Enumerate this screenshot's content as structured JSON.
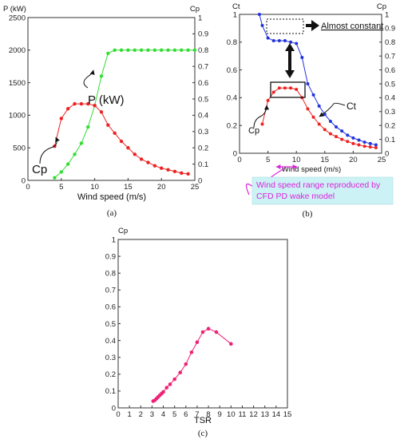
{
  "chart_data": [
    {
      "type": "line",
      "panel_label": "(a)",
      "xlabel": "Wind speed (m/s)",
      "ylabel_left": "P (kW)",
      "ylabel_right": "Cp",
      "xlim": [
        0,
        25
      ],
      "ylim_left": [
        0,
        2500
      ],
      "ylim_right": [
        0,
        1
      ],
      "xticks": [
        "0",
        "5",
        "10",
        "15",
        "20",
        "25"
      ],
      "yticks_left": [
        "0",
        "500",
        "1000",
        "1500",
        "2000",
        "2500"
      ],
      "yticks_right": [
        "0",
        "0.1",
        "0.2",
        "0.3",
        "0.4",
        "0.5",
        "0.6",
        "0.7",
        "0.8",
        "0.9",
        "1"
      ],
      "grid": false,
      "series": [
        {
          "name": "P (kW)",
          "axis": "left",
          "color": "#33dd33",
          "x": [
            4,
            5,
            6,
            7,
            8,
            9,
            10,
            11,
            12,
            13,
            14,
            15,
            16,
            17,
            18,
            19,
            20,
            21,
            22,
            23,
            24,
            25
          ],
          "y": [
            40,
            130,
            250,
            400,
            570,
            820,
            1150,
            1600,
            1950,
            2000,
            2000,
            2000,
            2000,
            2000,
            2000,
            2000,
            2000,
            2000,
            2000,
            2000,
            2000,
            2000
          ]
        },
        {
          "name": "Cp",
          "axis": "right",
          "color": "#ee2222",
          "x": [
            4,
            5,
            6,
            7,
            8,
            9,
            10,
            11,
            12,
            13,
            14,
            15,
            16,
            17,
            18,
            19,
            20,
            21,
            22,
            23,
            24
          ],
          "y": [
            0.21,
            0.38,
            0.44,
            0.47,
            0.47,
            0.47,
            0.46,
            0.42,
            0.34,
            0.29,
            0.24,
            0.2,
            0.16,
            0.13,
            0.11,
            0.09,
            0.075,
            0.065,
            0.055,
            0.045,
            0.04
          ]
        }
      ],
      "annotations": [
        "Cp",
        "P (kW)"
      ]
    },
    {
      "type": "line",
      "panel_label": "(b)",
      "xlabel": "Wind speed (m/s)",
      "ylabel_left": "Ct",
      "ylabel_right": "Cp",
      "xlim": [
        0,
        25
      ],
      "ylim_left": [
        0,
        1
      ],
      "ylim_right": [
        0,
        1
      ],
      "xticks": [
        "0",
        "5",
        "10",
        "15",
        "20",
        "25"
      ],
      "yticks_left": [
        "0",
        "0.2",
        "0.4",
        "0.6",
        "0.8",
        "1"
      ],
      "yticks_right": [
        "0",
        "0.1",
        "0.2",
        "0.3",
        "0.4",
        "0.5",
        "0.6",
        "0.7",
        "0.8",
        "0.9",
        "1"
      ],
      "grid": false,
      "series": [
        {
          "name": "Ct",
          "axis": "left",
          "color": "#2233dd",
          "x": [
            3.5,
            4,
            5,
            6,
            7,
            8,
            9,
            10,
            11,
            12,
            13,
            14,
            15,
            16,
            17,
            18,
            19,
            20,
            21,
            22,
            23,
            24
          ],
          "y": [
            1.0,
            0.92,
            0.83,
            0.81,
            0.81,
            0.81,
            0.8,
            0.79,
            0.69,
            0.5,
            0.42,
            0.34,
            0.28,
            0.23,
            0.19,
            0.16,
            0.13,
            0.11,
            0.095,
            0.08,
            0.07,
            0.06
          ]
        },
        {
          "name": "Cp",
          "axis": "right",
          "color": "#ee2222",
          "x": [
            4,
            5,
            6,
            7,
            8,
            9,
            10,
            11,
            12,
            13,
            14,
            15,
            16,
            17,
            18,
            19,
            20,
            21,
            22,
            23,
            24
          ],
          "y": [
            0.21,
            0.38,
            0.44,
            0.47,
            0.47,
            0.47,
            0.46,
            0.4,
            0.32,
            0.26,
            0.21,
            0.17,
            0.14,
            0.12,
            0.1,
            0.085,
            0.07,
            0.06,
            0.05,
            0.045,
            0.04
          ]
        }
      ],
      "annotations": [
        "Almost constant",
        "Ct",
        "Cp"
      ],
      "note": "Wind speed range reproduced by CFD PD wake model",
      "note_color": "#dd22dd",
      "note_bg": "#ccf2f5"
    },
    {
      "type": "line",
      "panel_label": "(c)",
      "xlabel": "TSR",
      "ylabel": "Cp",
      "xlim": [
        0,
        15
      ],
      "ylim": [
        0,
        1
      ],
      "xticks": [
        "0",
        "1",
        "2",
        "3",
        "4",
        "5",
        "6",
        "7",
        "8",
        "9",
        "10",
        "11",
        "12",
        "13",
        "14",
        "15"
      ],
      "yticks": [
        "0",
        "0.1",
        "0.2",
        "0.3",
        "0.4",
        "0.5",
        "0.6",
        "0.7",
        "0.8",
        "0.9",
        "1"
      ],
      "grid": false,
      "series": [
        {
          "name": "Cp",
          "color": "#ee2277",
          "x": [
            3.1,
            3.25,
            3.4,
            3.55,
            3.7,
            3.85,
            4.0,
            4.3,
            4.6,
            5.0,
            5.5,
            6.0,
            6.5,
            7.0,
            7.5,
            8.0,
            8.7,
            10.0
          ],
          "y": [
            0.04,
            0.045,
            0.055,
            0.065,
            0.075,
            0.085,
            0.095,
            0.12,
            0.14,
            0.17,
            0.21,
            0.26,
            0.33,
            0.39,
            0.45,
            0.47,
            0.45,
            0.38
          ]
        }
      ]
    }
  ]
}
